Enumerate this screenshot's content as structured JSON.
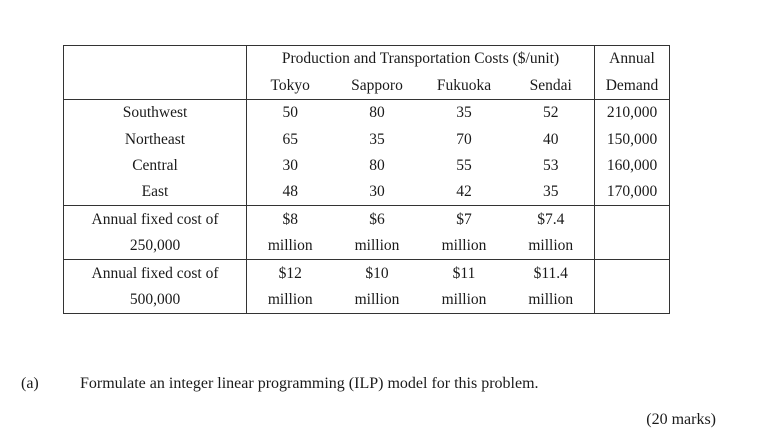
{
  "table": {
    "group_header": "Production and Transportation Costs ($/unit)",
    "demand_header_1": "Annual",
    "demand_header_2": "Demand",
    "cities": [
      "Tokyo",
      "Sapporo",
      "Fukuoka",
      "Sendai"
    ],
    "regions": [
      {
        "name": "Southwest",
        "costs": [
          "50",
          "80",
          "35",
          "52"
        ],
        "demand": "210,000"
      },
      {
        "name": "Northeast",
        "costs": [
          "65",
          "35",
          "70",
          "40"
        ],
        "demand": "150,000"
      },
      {
        "name": "Central",
        "costs": [
          "30",
          "80",
          "55",
          "53"
        ],
        "demand": "160,000"
      },
      {
        "name": "East",
        "costs": [
          "48",
          "30",
          "42",
          "35"
        ],
        "demand": "170,000"
      }
    ],
    "fixed_costs": [
      {
        "label_1": "Annual fixed cost of",
        "label_2": "250,000",
        "values": [
          "$8",
          "$6",
          "$7",
          "$7.4"
        ],
        "unit": "million"
      },
      {
        "label_1": "Annual fixed cost of",
        "label_2": "500,000",
        "values": [
          "$12",
          "$10",
          "$11",
          "$11.4"
        ],
        "unit": "million"
      }
    ]
  },
  "question": {
    "label": "(a)",
    "text": "Formulate an integer linear programming (ILP) model for this problem.",
    "marks": "(20 marks)"
  }
}
